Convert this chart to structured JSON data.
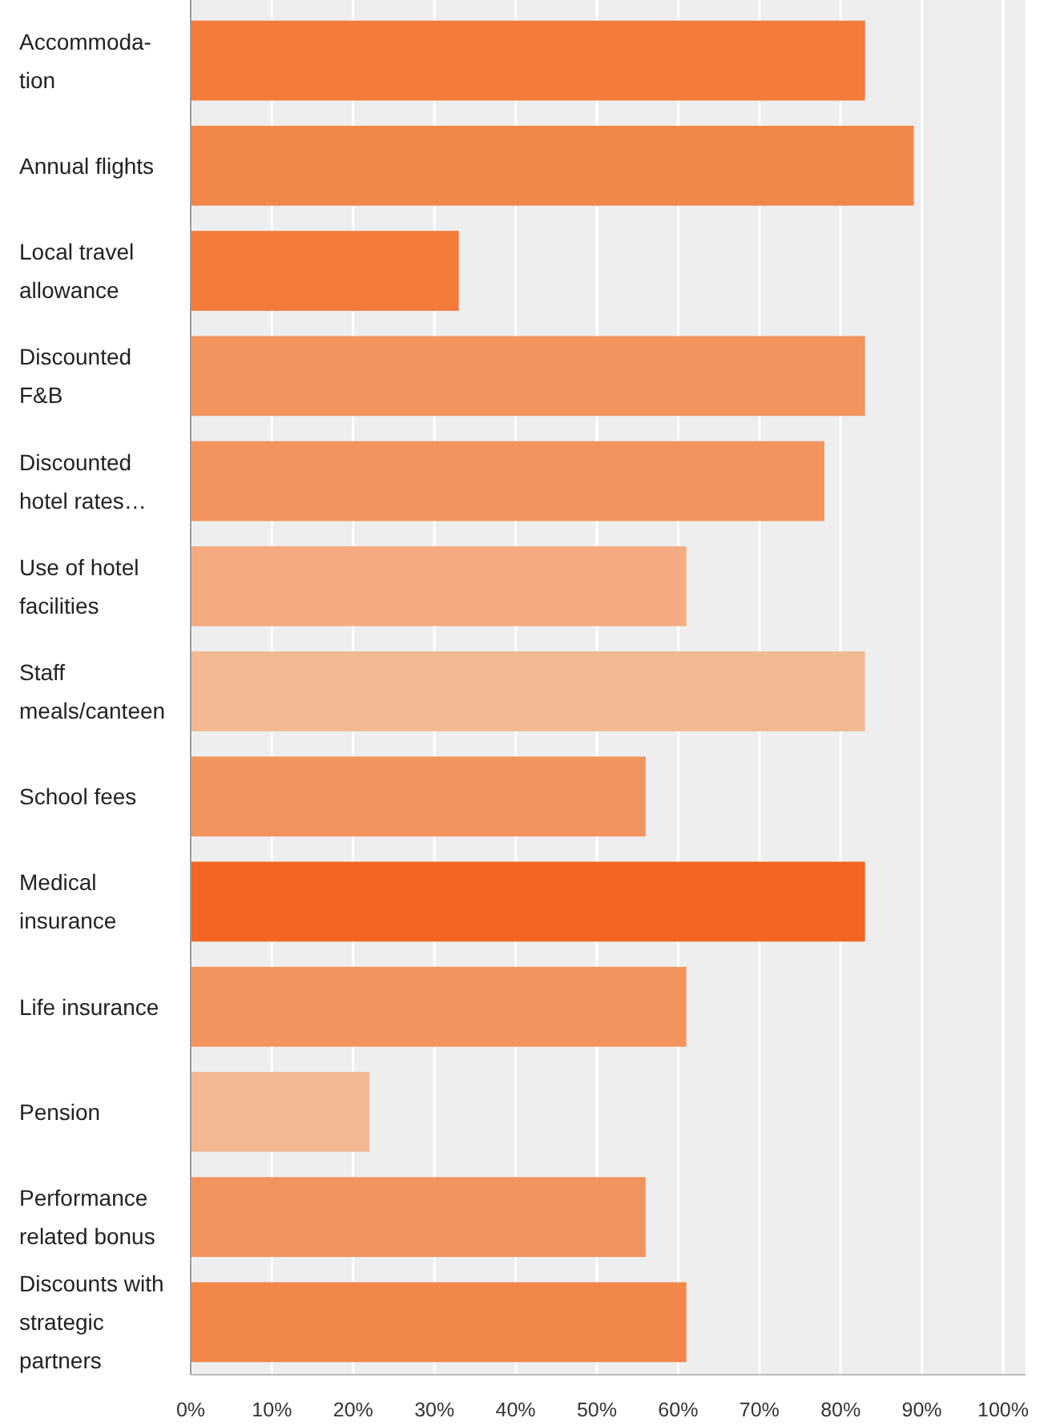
{
  "chart_data": {
    "type": "bar",
    "orientation": "horizontal",
    "categories": [
      "Accommoda-\ntion",
      "Annual flights",
      "Local travel\nallowance",
      "Discounted\nF&B",
      "Discounted\nhotel rates…",
      "Use of hotel\nfacilities",
      "Staff\nmeals/canteen",
      "School fees",
      "Medical\ninsurance",
      "Life insurance",
      "Pension",
      "Performance\nrelated bonus",
      "Discounts with\nstrategic\npartners"
    ],
    "values": [
      83,
      89,
      33,
      83,
      78,
      61,
      83,
      56,
      83,
      61,
      22,
      56,
      61
    ],
    "colors": [
      "#f47b3a",
      "#f2874a",
      "#f47b3a",
      "#f3935e",
      "#f3935e",
      "#f4ab82",
      "#f2b793",
      "#f3935e",
      "#f26522",
      "#f3935e",
      "#f2b793",
      "#f3935e",
      "#f2874a"
    ],
    "xlim": [
      0,
      100
    ],
    "xticks": [
      {
        "value": 0,
        "label": "0%"
      },
      {
        "value": 10,
        "label": "10%"
      },
      {
        "value": 20,
        "label": "20%"
      },
      {
        "value": 30,
        "label": "30%"
      },
      {
        "value": 40,
        "label": "40%"
      },
      {
        "value": 50,
        "label": "50%"
      },
      {
        "value": 60,
        "label": "60%"
      },
      {
        "value": 70,
        "label": "70%"
      },
      {
        "value": 80,
        "label": "80%"
      },
      {
        "value": 90,
        "label": "90%"
      },
      {
        "value": 100,
        "label": "100%"
      }
    ],
    "grid": "x"
  }
}
